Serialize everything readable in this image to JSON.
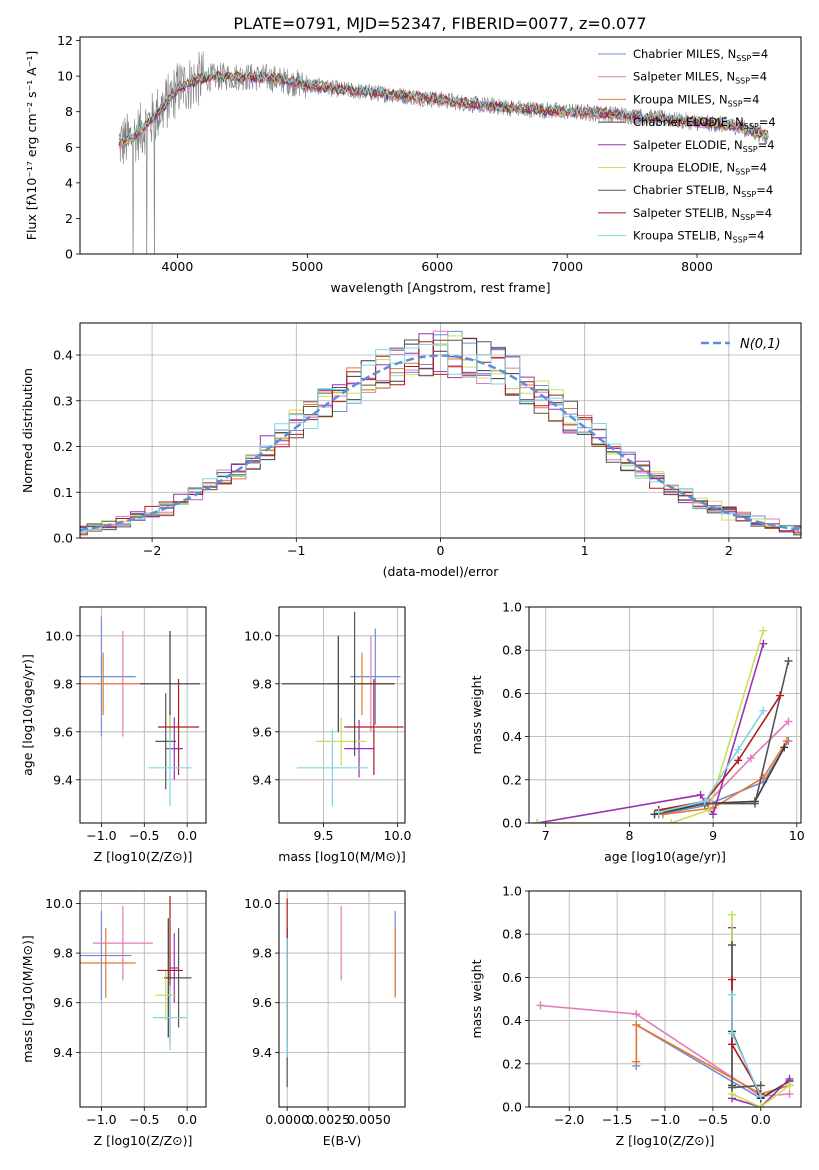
{
  "figure_title": "PLATE=0791, MJD=52347, FIBERID=0077, z=0.077",
  "colors": {
    "Chabrier MILES": "#6f8fd8",
    "Salpeter MILES": "#e07cb9",
    "Kroupa MILES": "#e8782e",
    "Chabrier ELODIE": "#3a3a3a",
    "Salpeter ELODIE": "#9b30b0",
    "Kroupa ELODIE": "#c8e05a",
    "Chabrier STELIB": "#555555",
    "Salpeter STELIB": "#b21a1a",
    "Kroupa STELIB": "#7fd8e0",
    "spectrum": "#808080",
    "normal": "#5b8fd9",
    "grid": "#b0b0b0"
  },
  "chart_data": [
    {
      "id": "spectrum",
      "type": "line",
      "title": "PLATE=0791, MJD=52347, FIBERID=0077, z=0.077",
      "xlabel": "wavelength [Angstrom, rest frame]",
      "ylabel": "Flux [fλ10⁻¹⁷ erg cm⁻² s⁻¹ A⁻¹]",
      "xlim": [
        3250,
        8800
      ],
      "ylim": [
        0,
        12.2
      ],
      "xticks": [
        4000,
        5000,
        6000,
        7000,
        8000
      ],
      "yticks": [
        0,
        2,
        4,
        6,
        8,
        10,
        12
      ],
      "grid": false,
      "legend_position": "top-right",
      "continuum_x": [
        3550,
        3650,
        3800,
        3950,
        4000,
        4200,
        4400,
        4700,
        5000,
        5300,
        5600,
        6000,
        6300,
        6600,
        7000,
        7300,
        7600,
        8000,
        8300,
        8550
      ],
      "continuum_y": [
        6.2,
        6.5,
        7.5,
        8.8,
        9.3,
        9.9,
        10.0,
        9.9,
        9.5,
        9.2,
        9.0,
        8.7,
        8.4,
        8.2,
        8.0,
        7.9,
        7.7,
        7.4,
        7.2,
        6.6
      ],
      "series": [
        {
          "name": "Chabrier MILES, N_SSP=4"
        },
        {
          "name": "Salpeter MILES, N_SSP=4"
        },
        {
          "name": "Kroupa MILES, N_SSP=4"
        },
        {
          "name": "Chabrier ELODIE, N_SSP=4"
        },
        {
          "name": "Salpeter ELODIE, N_SSP=4"
        },
        {
          "name": "Kroupa ELODIE, N_SSP=4"
        },
        {
          "name": "Chabrier STELIB, N_SSP=4"
        },
        {
          "name": "Salpeter STELIB, N_SSP=4"
        },
        {
          "name": "Kroupa STELIB, N_SSP=4"
        }
      ]
    },
    {
      "id": "residuals",
      "type": "line",
      "xlabel": "(data-model)/error",
      "ylabel": "Normed distribution",
      "xlim": [
        -2.5,
        2.5
      ],
      "ylim": [
        0,
        0.47
      ],
      "xticks": [
        -2,
        -1,
        0,
        1,
        2
      ],
      "yticks": [
        0.0,
        0.1,
        0.2,
        0.3,
        0.4
      ],
      "grid": true,
      "legend_position": "top-right",
      "legend": "N(0,1)",
      "series": [
        {
          "name": "N(0,1)",
          "mean": 0,
          "sigma": 1
        }
      ]
    },
    {
      "id": "age-vs-Z",
      "type": "scatter",
      "xlabel": "Z [log10(Z/Z⊙)]",
      "ylabel": "age  [log10(age/yr)]",
      "xlim": [
        -1.25,
        0.22
      ],
      "ylim": [
        9.22,
        10.12
      ],
      "xticks": [
        -1.0,
        -0.5,
        0.0
      ],
      "yticks": [
        9.4,
        9.6,
        9.8,
        10.0
      ],
      "grid": true,
      "points": [
        {
          "series": "Chabrier MILES",
          "x": -1.0,
          "xerr": 0.4,
          "y": 9.83,
          "yerr": 0.25
        },
        {
          "series": "Salpeter MILES",
          "x": -0.75,
          "xerr": 0.3,
          "y": 9.8,
          "yerr": 0.22
        },
        {
          "series": "Kroupa MILES",
          "x": -0.98,
          "xerr": 0.42,
          "y": 9.8,
          "yerr": 0.13
        },
        {
          "series": "Chabrier ELODIE",
          "x": -0.2,
          "xerr": 0.35,
          "y": 9.8,
          "yerr": 0.22
        },
        {
          "series": "Salpeter ELODIE",
          "x": -0.15,
          "xerr": 0.1,
          "y": 9.53,
          "yerr": 0.13
        },
        {
          "series": "Kroupa ELODIE",
          "x": -0.2,
          "xerr": 0.05,
          "y": 9.56,
          "yerr": 0.11
        },
        {
          "series": "Chabrier STELIB",
          "x": -0.25,
          "xerr": 0.12,
          "y": 9.56,
          "yerr": 0.2
        },
        {
          "series": "Salpeter STELIB",
          "x": -0.1,
          "xerr": 0.24,
          "y": 9.62,
          "yerr": 0.2
        },
        {
          "series": "Kroupa STELIB",
          "x": -0.2,
          "xerr": 0.25,
          "y": 9.45,
          "yerr": 0.16
        }
      ]
    },
    {
      "id": "age-vs-mass",
      "type": "scatter",
      "xlabel": "mass [log10(M/M⊙)]",
      "ylabel": "",
      "xlim": [
        9.2,
        10.05
      ],
      "ylim": [
        9.22,
        10.12
      ],
      "xticks": [
        9.5,
        10.0
      ],
      "yticks": [
        9.4,
        9.6,
        9.8,
        10.0
      ],
      "grid": true,
      "points": [
        {
          "series": "Chabrier MILES",
          "x": 9.85,
          "xerr": 0.17,
          "y": 9.83,
          "yerr": 0.2
        },
        {
          "series": "Salpeter MILES",
          "x": 9.82,
          "xerr": 0.16,
          "y": 9.8,
          "yerr": 0.2
        },
        {
          "series": "Kroupa MILES",
          "x": 9.76,
          "xerr": 0.22,
          "y": 9.8,
          "yerr": 0.13
        },
        {
          "series": "Chabrier ELODIE",
          "x": 9.6,
          "xerr": 0.38,
          "y": 9.8,
          "yerr": 0.2
        },
        {
          "series": "Salpeter ELODIE",
          "x": 9.74,
          "xerr": 0.1,
          "y": 9.53,
          "yerr": 0.12
        },
        {
          "series": "Kroupa ELODIE",
          "x": 9.62,
          "xerr": 0.17,
          "y": 9.56,
          "yerr": 0.1
        },
        {
          "series": "Chabrier STELIB",
          "x": 9.71,
          "xerr": 0.06,
          "y": 9.8,
          "yerr": 0.3
        },
        {
          "series": "Salpeter STELIB",
          "x": 9.84,
          "xerr": 0.2,
          "y": 9.62,
          "yerr": 0.2
        },
        {
          "series": "Kroupa STELIB",
          "x": 9.56,
          "xerr": 0.24,
          "y": 9.45,
          "yerr": 0.16
        }
      ]
    },
    {
      "id": "mass-weight-vs-age",
      "type": "line",
      "xlabel": "age  [log10(age/yr)]",
      "ylabel": "mass weight",
      "xlim": [
        6.8,
        10.05
      ],
      "ylim": [
        0,
        1.0
      ],
      "xticks": [
        7,
        8,
        9,
        10
      ],
      "yticks": [
        0.0,
        0.2,
        0.4,
        0.6,
        0.8,
        1.0
      ],
      "grid": true,
      "series": [
        {
          "name": "Chabrier MILES",
          "x": [
            8.35,
            8.9,
            9.6,
            9.9
          ],
          "y": [
            0.04,
            0.08,
            0.19,
            0.38
          ]
        },
        {
          "name": "Salpeter MILES",
          "x": [
            8.4,
            8.95,
            9.45,
            9.9
          ],
          "y": [
            0.05,
            0.1,
            0.3,
            0.47
          ]
        },
        {
          "name": "Kroupa MILES",
          "x": [
            8.4,
            9.0,
            9.6,
            9.88
          ],
          "y": [
            0.04,
            0.07,
            0.21,
            0.38
          ]
        },
        {
          "name": "Chabrier ELODIE",
          "x": [
            8.3,
            8.9,
            9.5,
            9.85
          ],
          "y": [
            0.04,
            0.09,
            0.1,
            0.35
          ]
        },
        {
          "name": "Salpeter ELODIE",
          "x": [
            6.9,
            8.85,
            9.0,
            9.6
          ],
          "y": [
            0.0,
            0.13,
            0.04,
            0.83
          ]
        },
        {
          "name": "Kroupa ELODIE",
          "x": [
            6.9,
            8.5,
            8.95,
            9.6
          ],
          "y": [
            0.0,
            0.0,
            0.06,
            0.89
          ]
        },
        {
          "name": "Chabrier STELIB",
          "x": [
            8.35,
            8.9,
            9.5,
            9.9
          ],
          "y": [
            0.06,
            0.09,
            0.09,
            0.75
          ]
        },
        {
          "name": "Salpeter STELIB",
          "x": [
            8.35,
            8.9,
            9.3,
            9.8
          ],
          "y": [
            0.06,
            0.1,
            0.29,
            0.59
          ]
        },
        {
          "name": "Kroupa STELIB",
          "x": [
            8.35,
            8.9,
            9.3,
            9.6
          ],
          "y": [
            0.05,
            0.1,
            0.34,
            0.52
          ]
        }
      ]
    },
    {
      "id": "mass-vs-Z",
      "type": "scatter",
      "xlabel": "Z [log10(Z/Z⊙)]",
      "ylabel": "mass [log10(M/M⊙)]",
      "xlim": [
        -1.25,
        0.22
      ],
      "ylim": [
        9.18,
        10.05
      ],
      "xticks": [
        -1.0,
        -0.5,
        0.0
      ],
      "yticks": [
        9.4,
        9.6,
        9.8,
        10.0
      ],
      "grid": true,
      "points": [
        {
          "series": "Chabrier MILES",
          "x": -1.0,
          "xerr": 0.35,
          "y": 9.79,
          "yerr": 0.18
        },
        {
          "series": "Salpeter MILES",
          "x": -0.75,
          "xerr": 0.35,
          "y": 9.84,
          "yerr": 0.15
        },
        {
          "series": "Kroupa MILES",
          "x": -0.95,
          "xerr": 0.35,
          "y": 9.76,
          "yerr": 0.14
        },
        {
          "series": "Chabrier ELODIE",
          "x": -0.22,
          "xerr": 0.05,
          "y": 9.7,
          "yerr": 0.24
        },
        {
          "series": "Salpeter ELODIE",
          "x": -0.15,
          "xerr": 0.05,
          "y": 9.74,
          "yerr": 0.14
        },
        {
          "series": "Kroupa ELODIE",
          "x": -0.25,
          "xerr": 0.12,
          "y": 9.63,
          "yerr": 0.1
        },
        {
          "series": "Chabrier STELIB",
          "x": -0.1,
          "xerr": 0.15,
          "y": 9.7,
          "yerr": 0.2
        },
        {
          "series": "Salpeter STELIB",
          "x": -0.2,
          "xerr": 0.15,
          "y": 9.73,
          "yerr": 0.3
        },
        {
          "series": "Kroupa STELIB",
          "x": -0.2,
          "xerr": 0.2,
          "y": 9.54,
          "yerr": 0.13
        }
      ]
    },
    {
      "id": "mass-vs-ebv",
      "type": "scatter",
      "xlabel": "E(B-V)",
      "ylabel": "",
      "xlim": [
        -0.0005,
        0.0072
      ],
      "ylim": [
        9.18,
        10.05
      ],
      "xticks": [
        0.0,
        0.0025,
        0.005
      ],
      "xtick_labels": [
        "0.0000",
        "0.0025",
        "0.0050"
      ],
      "yticks": [
        9.4,
        9.6,
        9.8,
        10.0
      ],
      "grid": true,
      "points": [
        {
          "series": "Chabrier MILES",
          "x": 0.0066,
          "y": 9.8,
          "yerr": 0.17
        },
        {
          "series": "Salpeter MILES",
          "x": 0.0033,
          "y": 9.84,
          "yerr": 0.15
        },
        {
          "series": "Kroupa MILES",
          "x": 0.0066,
          "y": 9.76,
          "yerr": 0.14
        },
        {
          "series": "Chabrier ELODIE",
          "x": 0.0,
          "y": 9.7,
          "yerr": 0.2
        },
        {
          "series": "Salpeter ELODIE",
          "x": 0.0,
          "y": 9.74,
          "yerr": 0.12
        },
        {
          "series": "Kroupa ELODIE",
          "x": 0.0,
          "y": 9.63,
          "yerr": 0.1
        },
        {
          "series": "Chabrier STELIB",
          "x": 0.0,
          "y": 9.56,
          "yerr": 0.3
        },
        {
          "series": "Salpeter STELIB",
          "x": 0.0,
          "y": 9.73,
          "yerr": 0.29
        },
        {
          "series": "Kroupa STELIB",
          "x": 0.0,
          "y": 9.62,
          "yerr": 0.24
        }
      ]
    },
    {
      "id": "mass-weight-vs-Z",
      "type": "line",
      "xlabel": "Z [log10(Z/Z⊙)]",
      "ylabel": "mass weight",
      "xlim": [
        -2.42,
        0.42
      ],
      "ylim": [
        0,
        1.0
      ],
      "xticks": [
        -2.0,
        -1.5,
        -1.0,
        -0.5,
        0.0
      ],
      "yticks": [
        0.0,
        0.2,
        0.4,
        0.6,
        0.8,
        1.0
      ],
      "grid": true,
      "series": [
        {
          "name": "Chabrier MILES",
          "x": [
            -1.3,
            -1.3,
            0.0,
            0.3
          ],
          "y": [
            0.19,
            0.38,
            0.04,
            0.12
          ]
        },
        {
          "name": "Salpeter MILES",
          "x": [
            -2.3,
            -1.3,
            0.0,
            0.3
          ],
          "y": [
            0.47,
            0.43,
            0.05,
            0.06
          ]
        },
        {
          "name": "Kroupa MILES",
          "x": [
            -1.3,
            -1.3,
            0.0,
            0.3
          ],
          "y": [
            0.21,
            0.38,
            0.06,
            0.1
          ]
        },
        {
          "name": "Chabrier ELODIE",
          "x": [
            -0.3,
            -0.3,
            0.0,
            0.3
          ],
          "y": [
            0.1,
            0.35,
            0.04,
            0.12
          ]
        },
        {
          "name": "Salpeter ELODIE",
          "x": [
            -0.3,
            -0.3,
            0.0,
            0.3
          ],
          "y": [
            0.83,
            0.04,
            0.0,
            0.13
          ]
        },
        {
          "name": "Kroupa ELODIE",
          "x": [
            -0.3,
            -0.3,
            0.0,
            0.3
          ],
          "y": [
            0.89,
            0.06,
            0.0,
            0.1
          ]
        },
        {
          "name": "Chabrier STELIB",
          "x": [
            -0.3,
            -0.3,
            0.0
          ],
          "y": [
            0.75,
            0.09,
            0.1
          ]
        },
        {
          "name": "Salpeter STELIB",
          "x": [
            -0.3,
            -0.3,
            0.0
          ],
          "y": [
            0.59,
            0.29,
            0.06
          ]
        },
        {
          "name": "Kroupa STELIB",
          "x": [
            -0.3,
            -0.3,
            0.0
          ],
          "y": [
            0.52,
            0.34,
            0.05
          ]
        }
      ]
    }
  ]
}
